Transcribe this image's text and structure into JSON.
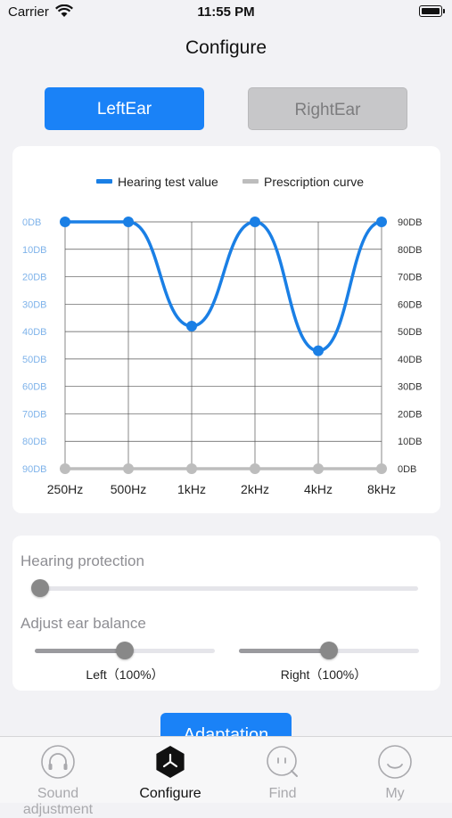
{
  "status": {
    "carrier": "Carrier",
    "time": "11:55 PM"
  },
  "header": {
    "title": "Configure"
  },
  "ear_toggle": {
    "left": "LeftEar",
    "right": "RightEar",
    "selected": "LeftEar"
  },
  "chart_data": {
    "type": "line",
    "categories": [
      "250Hz",
      "500Hz",
      "1kHz",
      "2kHz",
      "4kHz",
      "8kHz"
    ],
    "series": [
      {
        "name": "Hearing test value",
        "values": [
          0,
          0,
          38,
          0,
          47,
          0
        ],
        "color": "#1a7fe5"
      },
      {
        "name": "Prescription curve",
        "values": [
          90,
          90,
          90,
          90,
          90,
          90
        ],
        "color": "#bdbdbd"
      }
    ],
    "y_left_ticks": [
      "0DB",
      "10DB",
      "20DB",
      "30DB",
      "40DB",
      "50DB",
      "60DB",
      "70DB",
      "80DB",
      "90DB"
    ],
    "y_right_ticks": [
      "90DB",
      "80DB",
      "70DB",
      "60DB",
      "50DB",
      "40DB",
      "30DB",
      "20DB",
      "10DB",
      "0DB"
    ],
    "ylim": [
      0,
      90
    ],
    "y_inverted": true,
    "grid": true,
    "legend": "top"
  },
  "settings": {
    "hearing_protection_label": "Hearing protection",
    "hearing_protection_value": 0,
    "balance_label": "Adjust ear balance",
    "left_label": "Left（100%）",
    "left_value": 0.5,
    "right_label": "Right（100%）",
    "right_value": 0.5
  },
  "adapt_button": "Adaptation",
  "tabs": [
    {
      "label": "Sound adjustment",
      "icon": "headphones-icon",
      "active": false
    },
    {
      "label": "Configure",
      "icon": "configure-icon",
      "active": true
    },
    {
      "label": "Find",
      "icon": "find-icon",
      "active": false
    },
    {
      "label": "My",
      "icon": "smiley-icon",
      "active": false
    }
  ]
}
